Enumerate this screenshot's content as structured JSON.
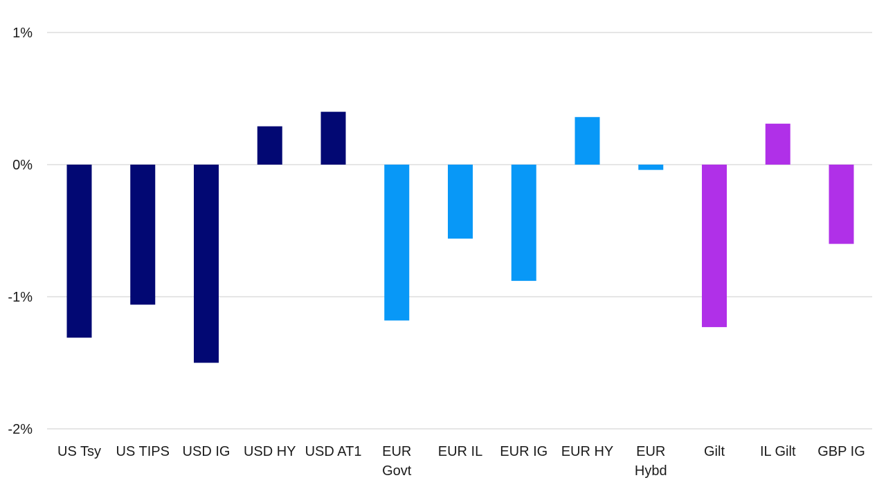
{
  "chart_data": {
    "type": "bar",
    "title": "",
    "xlabel": "",
    "ylabel": "",
    "ylim": [
      -2,
      1
    ],
    "y_ticks": [
      {
        "value": 1,
        "label": "1%"
      },
      {
        "value": 0,
        "label": "0%"
      },
      {
        "value": -1,
        "label": "-1%"
      },
      {
        "value": -2,
        "label": "-2%"
      }
    ],
    "grid": true,
    "legend": "none",
    "categories": [
      {
        "lines": [
          "US Tsy"
        ]
      },
      {
        "lines": [
          "US TIPS"
        ]
      },
      {
        "lines": [
          "USD IG"
        ]
      },
      {
        "lines": [
          "USD HY"
        ]
      },
      {
        "lines": [
          "USD AT1"
        ]
      },
      {
        "lines": [
          "EUR",
          "Govt"
        ]
      },
      {
        "lines": [
          "EUR IL"
        ]
      },
      {
        "lines": [
          "EUR IG"
        ]
      },
      {
        "lines": [
          "EUR HY"
        ]
      },
      {
        "lines": [
          "EUR",
          "Hybd"
        ]
      },
      {
        "lines": [
          "Gilt"
        ]
      },
      {
        "lines": [
          "IL Gilt"
        ]
      },
      {
        "lines": [
          "GBP IG"
        ]
      }
    ],
    "values": [
      -1.31,
      -1.06,
      -1.5,
      0.29,
      0.4,
      -1.18,
      -0.56,
      -0.88,
      0.36,
      -0.04,
      -1.23,
      0.31,
      -0.6
    ],
    "bar_colors": [
      "#020873",
      "#020873",
      "#020873",
      "#020873",
      "#020873",
      "#0898f7",
      "#0898f7",
      "#0898f7",
      "#0898f7",
      "#0898f7",
      "#b030e8",
      "#b030e8",
      "#b030e8"
    ]
  }
}
